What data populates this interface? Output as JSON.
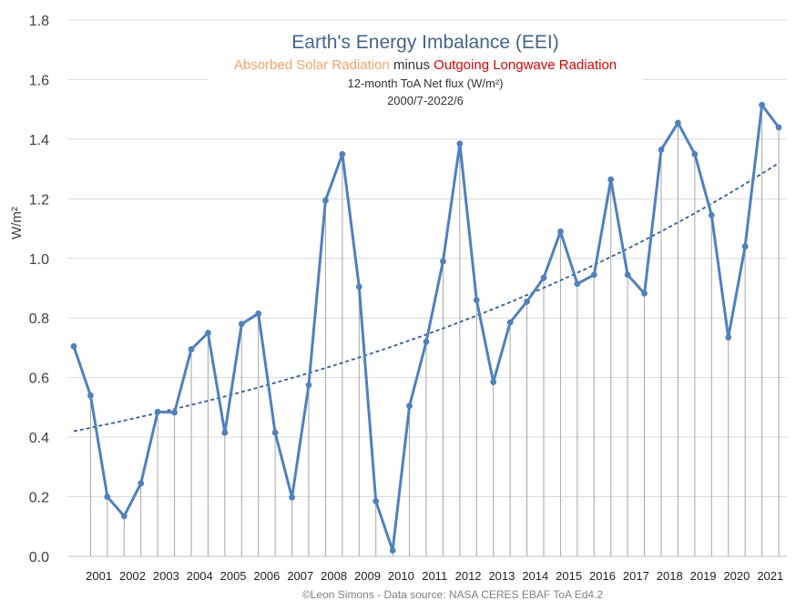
{
  "chart_data": {
    "type": "line",
    "title": "Earth's Energy Imbalance (EEI)",
    "subtitle_parts": [
      {
        "text": "Absorbed Solar Radiation",
        "color": "#f4a460"
      },
      {
        "text": " minus ",
        "color": "#333333"
      },
      {
        "text": "Outgoing Longwave Radiation",
        "color": "#e00000"
      }
    ],
    "subtitle2": "12-month ToA Net flux (W/m²)",
    "subtitle3": "2000/7-2022/6",
    "ylabel": "W/m²",
    "xlabel": "",
    "ylim": [
      0,
      1.8
    ],
    "yticks": [
      "0.0",
      "0.2",
      "0.4",
      "0.6",
      "0.8",
      "1.0",
      "1.2",
      "1.4",
      "1.6",
      "1.8"
    ],
    "year_labels": [
      "2001",
      "2002",
      "2003",
      "2004",
      "2005",
      "2006",
      "2007",
      "2008",
      "2009",
      "2010",
      "2011",
      "2012",
      "2013",
      "2014",
      "2015",
      "2016",
      "2017",
      "2018",
      "2019",
      "2020",
      "2021"
    ],
    "series": [
      {
        "name": "EEI",
        "color": "#4f81bd",
        "values": [
          0.705,
          0.54,
          0.2,
          0.135,
          0.245,
          0.485,
          0.483,
          0.695,
          0.75,
          0.415,
          0.78,
          0.815,
          0.415,
          0.198,
          0.575,
          1.195,
          1.35,
          0.905,
          0.185,
          0.02,
          0.505,
          0.72,
          0.99,
          1.385,
          0.86,
          0.585,
          0.785,
          0.855,
          0.935,
          1.09,
          0.915,
          0.945,
          1.265,
          0.945,
          0.882,
          1.365,
          1.455,
          1.35,
          1.145,
          0.735,
          1.04,
          1.515,
          1.44
        ]
      },
      {
        "name": "Trend",
        "color": "#2e5fa3",
        "style": "dashed",
        "trend_start": 0.42,
        "trend_end": 1.32
      }
    ],
    "footer": "©Leon Simons -  Data source: NASA CERES EBAF ToA Ed4.2"
  },
  "colors": {
    "title": "#44648c",
    "grid": "#d9d9d9",
    "axis_text": "#404040",
    "drop_line": "#a6a6a6"
  }
}
